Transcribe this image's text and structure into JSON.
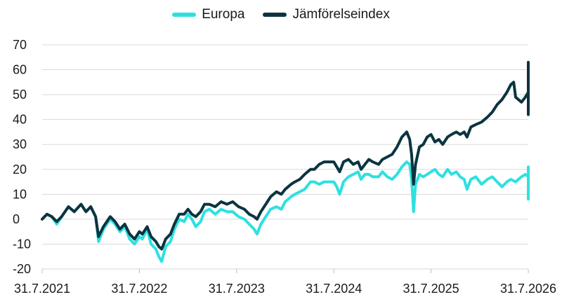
{
  "chart_data": {
    "type": "line",
    "title": "",
    "xlabel": "",
    "ylabel": "",
    "x_tick_labels": [
      "31.7.2021",
      "31.7.2022",
      "31.7.2023",
      "31.7.2024",
      "31.7.2025",
      "31.7.2026"
    ],
    "ylim": [
      -20,
      70
    ],
    "y_ticks": [
      70,
      60,
      50,
      40,
      30,
      20,
      10,
      0,
      -10,
      -20
    ],
    "grid": "horizontal",
    "legend": "top-center",
    "x_unit": "years since 31.7.2021",
    "series": [
      {
        "name": "Europa",
        "color": "#2ee0e0",
        "points": [
          [
            0.0,
            0
          ],
          [
            0.05,
            2
          ],
          [
            0.1,
            1
          ],
          [
            0.15,
            -2
          ],
          [
            0.2,
            1
          ],
          [
            0.27,
            5
          ],
          [
            0.33,
            3
          ],
          [
            0.4,
            6
          ],
          [
            0.45,
            3
          ],
          [
            0.5,
            5
          ],
          [
            0.55,
            1
          ],
          [
            0.58,
            -9
          ],
          [
            0.63,
            -4
          ],
          [
            0.7,
            0
          ],
          [
            0.75,
            -2
          ],
          [
            0.8,
            -5
          ],
          [
            0.85,
            -3
          ],
          [
            0.9,
            -8
          ],
          [
            0.95,
            -10
          ],
          [
            1.0,
            -7
          ],
          [
            1.03,
            -8
          ],
          [
            1.08,
            -4
          ],
          [
            1.12,
            -10
          ],
          [
            1.17,
            -12
          ],
          [
            1.2,
            -15
          ],
          [
            1.23,
            -17
          ],
          [
            1.27,
            -11
          ],
          [
            1.32,
            -9
          ],
          [
            1.36,
            -4
          ],
          [
            1.41,
            0
          ],
          [
            1.46,
            -1
          ],
          [
            1.5,
            2
          ],
          [
            1.54,
            0
          ],
          [
            1.58,
            -3
          ],
          [
            1.63,
            -1
          ],
          [
            1.67,
            3
          ],
          [
            1.72,
            4
          ],
          [
            1.78,
            2
          ],
          [
            1.84,
            4
          ],
          [
            1.9,
            3
          ],
          [
            1.96,
            3
          ],
          [
            2.02,
            1
          ],
          [
            2.08,
            0
          ],
          [
            2.13,
            -2
          ],
          [
            2.18,
            -4
          ],
          [
            2.21,
            -6
          ],
          [
            2.25,
            -2
          ],
          [
            2.3,
            1
          ],
          [
            2.35,
            4
          ],
          [
            2.41,
            5
          ],
          [
            2.46,
            4
          ],
          [
            2.5,
            7
          ],
          [
            2.56,
            9
          ],
          [
            2.6,
            10
          ],
          [
            2.65,
            11
          ],
          [
            2.7,
            12
          ],
          [
            2.76,
            15
          ],
          [
            2.8,
            15
          ],
          [
            2.85,
            14
          ],
          [
            2.9,
            15
          ],
          [
            2.95,
            15
          ],
          [
            3.0,
            15
          ],
          [
            3.03,
            13
          ],
          [
            3.06,
            10
          ],
          [
            3.1,
            15
          ],
          [
            3.15,
            17
          ],
          [
            3.2,
            18
          ],
          [
            3.25,
            19
          ],
          [
            3.28,
            16
          ],
          [
            3.32,
            18
          ],
          [
            3.36,
            18
          ],
          [
            3.4,
            17
          ],
          [
            3.46,
            17
          ],
          [
            3.5,
            19
          ],
          [
            3.55,
            17
          ],
          [
            3.6,
            16
          ],
          [
            3.65,
            18
          ],
          [
            3.7,
            21
          ],
          [
            3.75,
            23
          ],
          [
            3.78,
            22
          ],
          [
            3.8,
            16
          ],
          [
            3.82,
            3
          ],
          [
            3.84,
            14
          ],
          [
            3.88,
            18
          ],
          [
            3.92,
            17
          ],
          [
            3.96,
            18
          ],
          [
            4.0,
            19
          ],
          [
            4.04,
            20
          ],
          [
            4.08,
            18
          ],
          [
            4.12,
            17
          ],
          [
            4.17,
            20
          ],
          [
            4.21,
            18
          ],
          [
            4.26,
            19
          ],
          [
            4.3,
            17
          ],
          [
            4.34,
            16
          ],
          [
            4.37,
            12
          ],
          [
            4.41,
            16
          ],
          [
            4.46,
            17
          ],
          [
            4.52,
            14
          ],
          [
            4.58,
            16
          ],
          [
            4.63,
            17
          ],
          [
            4.68,
            15
          ],
          [
            4.73,
            13
          ],
          [
            4.78,
            15
          ],
          [
            4.82,
            16
          ],
          [
            4.87,
            15
          ],
          [
            4.93,
            17
          ],
          [
            4.97,
            18
          ],
          [
            5.0,
            17
          ],
          [
            5.03,
            18
          ],
          [
            5.07,
            14
          ],
          [
            5.1,
            8
          ],
          [
            5.13,
            9
          ],
          [
            5.16,
            12
          ],
          [
            5.2,
            14
          ],
          [
            5.25,
            16
          ],
          [
            5.3,
            15
          ],
          [
            5.35,
            17
          ],
          [
            5.4,
            18
          ],
          [
            5.45,
            19
          ],
          [
            5.5,
            19
          ],
          [
            5.55,
            20
          ],
          [
            5.6,
            21
          ]
        ]
      },
      {
        "name": "Jämförelseindex",
        "color": "#0b3440",
        "points": [
          [
            0.0,
            0
          ],
          [
            0.05,
            2
          ],
          [
            0.1,
            1
          ],
          [
            0.15,
            -1
          ],
          [
            0.2,
            1
          ],
          [
            0.27,
            5
          ],
          [
            0.33,
            3
          ],
          [
            0.4,
            6
          ],
          [
            0.45,
            3
          ],
          [
            0.5,
            5
          ],
          [
            0.55,
            1
          ],
          [
            0.58,
            -7
          ],
          [
            0.63,
            -3
          ],
          [
            0.7,
            1
          ],
          [
            0.75,
            -1
          ],
          [
            0.8,
            -4
          ],
          [
            0.85,
            -2
          ],
          [
            0.9,
            -6
          ],
          [
            0.95,
            -8
          ],
          [
            1.0,
            -5
          ],
          [
            1.03,
            -6
          ],
          [
            1.08,
            -3
          ],
          [
            1.12,
            -7
          ],
          [
            1.17,
            -9
          ],
          [
            1.2,
            -11
          ],
          [
            1.23,
            -12
          ],
          [
            1.27,
            -8
          ],
          [
            1.32,
            -6
          ],
          [
            1.36,
            -2
          ],
          [
            1.41,
            2
          ],
          [
            1.46,
            2
          ],
          [
            1.5,
            4
          ],
          [
            1.54,
            2
          ],
          [
            1.58,
            1
          ],
          [
            1.63,
            3
          ],
          [
            1.67,
            6
          ],
          [
            1.72,
            6
          ],
          [
            1.78,
            5
          ],
          [
            1.84,
            7
          ],
          [
            1.9,
            6
          ],
          [
            1.96,
            7
          ],
          [
            2.02,
            5
          ],
          [
            2.08,
            4
          ],
          [
            2.13,
            2
          ],
          [
            2.18,
            1
          ],
          [
            2.21,
            0
          ],
          [
            2.25,
            3
          ],
          [
            2.3,
            6
          ],
          [
            2.35,
            9
          ],
          [
            2.41,
            11
          ],
          [
            2.46,
            10
          ],
          [
            2.5,
            12
          ],
          [
            2.56,
            14
          ],
          [
            2.6,
            15
          ],
          [
            2.65,
            16
          ],
          [
            2.7,
            18
          ],
          [
            2.76,
            20
          ],
          [
            2.8,
            20
          ],
          [
            2.85,
            22
          ],
          [
            2.9,
            23
          ],
          [
            2.95,
            23
          ],
          [
            3.0,
            23
          ],
          [
            3.03,
            21
          ],
          [
            3.06,
            19
          ],
          [
            3.1,
            23
          ],
          [
            3.15,
            24
          ],
          [
            3.2,
            22
          ],
          [
            3.25,
            23
          ],
          [
            3.28,
            20
          ],
          [
            3.32,
            22
          ],
          [
            3.36,
            24
          ],
          [
            3.4,
            23
          ],
          [
            3.46,
            22
          ],
          [
            3.5,
            24
          ],
          [
            3.55,
            25
          ],
          [
            3.6,
            26
          ],
          [
            3.65,
            29
          ],
          [
            3.7,
            33
          ],
          [
            3.75,
            35
          ],
          [
            3.78,
            32
          ],
          [
            3.8,
            26
          ],
          [
            3.82,
            14
          ],
          [
            3.84,
            22
          ],
          [
            3.88,
            29
          ],
          [
            3.92,
            30
          ],
          [
            3.96,
            33
          ],
          [
            4.0,
            34
          ],
          [
            4.04,
            31
          ],
          [
            4.08,
            32
          ],
          [
            4.12,
            30
          ],
          [
            4.17,
            33
          ],
          [
            4.21,
            34
          ],
          [
            4.26,
            35
          ],
          [
            4.3,
            34
          ],
          [
            4.34,
            35
          ],
          [
            4.37,
            33
          ],
          [
            4.41,
            37
          ],
          [
            4.46,
            38
          ],
          [
            4.52,
            39
          ],
          [
            4.58,
            41
          ],
          [
            4.63,
            43
          ],
          [
            4.68,
            46
          ],
          [
            4.73,
            48
          ],
          [
            4.78,
            51
          ],
          [
            4.82,
            54
          ],
          [
            4.85,
            55
          ],
          [
            4.87,
            49
          ],
          [
            4.93,
            47
          ],
          [
            4.97,
            49
          ],
          [
            5.0,
            51
          ],
          [
            5.03,
            52
          ],
          [
            5.07,
            47
          ],
          [
            5.1,
            42
          ],
          [
            5.13,
            46
          ],
          [
            5.16,
            50
          ],
          [
            5.2,
            53
          ],
          [
            5.25,
            52
          ],
          [
            5.3,
            56
          ],
          [
            5.35,
            57
          ],
          [
            5.4,
            59
          ],
          [
            5.45,
            61
          ],
          [
            5.5,
            63
          ],
          [
            5.55,
            61
          ],
          [
            5.6,
            62
          ]
        ]
      }
    ]
  }
}
